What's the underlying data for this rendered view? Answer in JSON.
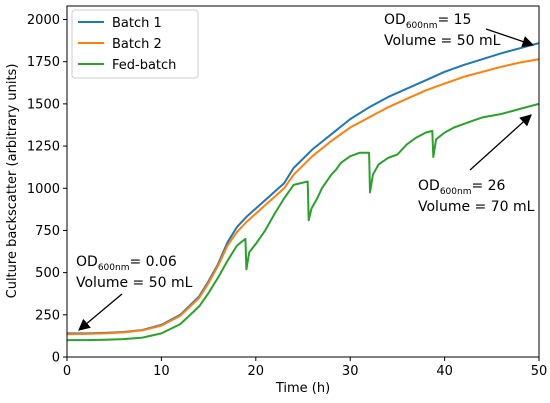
{
  "chart_data": {
    "type": "line",
    "xlabel": "Time (h)",
    "ylabel": "Culture backscatter (arbitrary units)",
    "xlim": [
      0,
      50
    ],
    "ylim": [
      0,
      2080
    ],
    "xticks": [
      0,
      10,
      20,
      30,
      40,
      50
    ],
    "yticks": [
      0,
      250,
      500,
      750,
      1000,
      1250,
      1500,
      1750,
      2000
    ],
    "grid": false,
    "legend_position": "top-left",
    "colors": {
      "batch1": "#1f77b4",
      "batch2": "#ff7f0e",
      "fedbatch": "#2ca02c"
    },
    "series": [
      {
        "name": "Batch 1",
        "x": [
          0,
          2,
          4,
          6,
          8,
          10,
          12,
          14,
          15,
          16,
          17,
          18,
          19,
          20,
          21,
          22,
          23,
          24,
          26,
          28,
          30,
          32,
          34,
          36,
          38,
          40,
          42,
          44,
          46,
          48,
          50
        ],
        "y": [
          140,
          140,
          143,
          148,
          160,
          190,
          250,
          360,
          450,
          550,
          680,
          770,
          830,
          880,
          930,
          980,
          1030,
          1120,
          1230,
          1320,
          1410,
          1480,
          1540,
          1590,
          1640,
          1690,
          1730,
          1765,
          1800,
          1830,
          1860
        ]
      },
      {
        "name": "Batch 2",
        "x": [
          0,
          2,
          4,
          6,
          8,
          10,
          12,
          14,
          15,
          16,
          17,
          18,
          19,
          20,
          21,
          22,
          23,
          24,
          26,
          28,
          30,
          32,
          34,
          36,
          38,
          40,
          42,
          44,
          46,
          48,
          50
        ],
        "y": [
          135,
          137,
          140,
          146,
          158,
          186,
          245,
          350,
          440,
          540,
          660,
          740,
          800,
          850,
          900,
          950,
          1000,
          1080,
          1190,
          1280,
          1360,
          1420,
          1480,
          1530,
          1580,
          1620,
          1660,
          1690,
          1720,
          1745,
          1765
        ]
      },
      {
        "name": "Fed-batch",
        "x": [
          0,
          2,
          4,
          6,
          8,
          10,
          12,
          14,
          15,
          16,
          17,
          18,
          18.9,
          19.0,
          19.3,
          20,
          21,
          22,
          23,
          24,
          25.5,
          25.6,
          25.9,
          26.5,
          27,
          28,
          28.5,
          29,
          30,
          31,
          32,
          32.1,
          32.4,
          33,
          34,
          35,
          36,
          37,
          38,
          38.7,
          38.8,
          39.1,
          40,
          41,
          42,
          43,
          44,
          46,
          48,
          50
        ],
        "y": [
          100,
          100,
          102,
          106,
          115,
          140,
          195,
          300,
          380,
          470,
          570,
          660,
          700,
          520,
          620,
          670,
          750,
          850,
          940,
          1020,
          1040,
          810,
          880,
          940,
          1000,
          1080,
          1110,
          1150,
          1190,
          1210,
          1210,
          975,
          1080,
          1140,
          1180,
          1200,
          1260,
          1300,
          1330,
          1340,
          1185,
          1290,
          1330,
          1360,
          1380,
          1400,
          1420,
          1440,
          1470,
          1500
        ]
      }
    ],
    "annotations": [
      {
        "prefix": "OD",
        "sub": "600nm",
        "suffix": "= 0.06",
        "line2": "Volume = 50 mL"
      },
      {
        "prefix": "OD",
        "sub": "600nm",
        "suffix": "= 15",
        "line2": "Volume = 50 mL"
      },
      {
        "prefix": "OD",
        "sub": "600nm",
        "suffix": "= 26",
        "line2": "Volume = 70 mL"
      }
    ]
  }
}
